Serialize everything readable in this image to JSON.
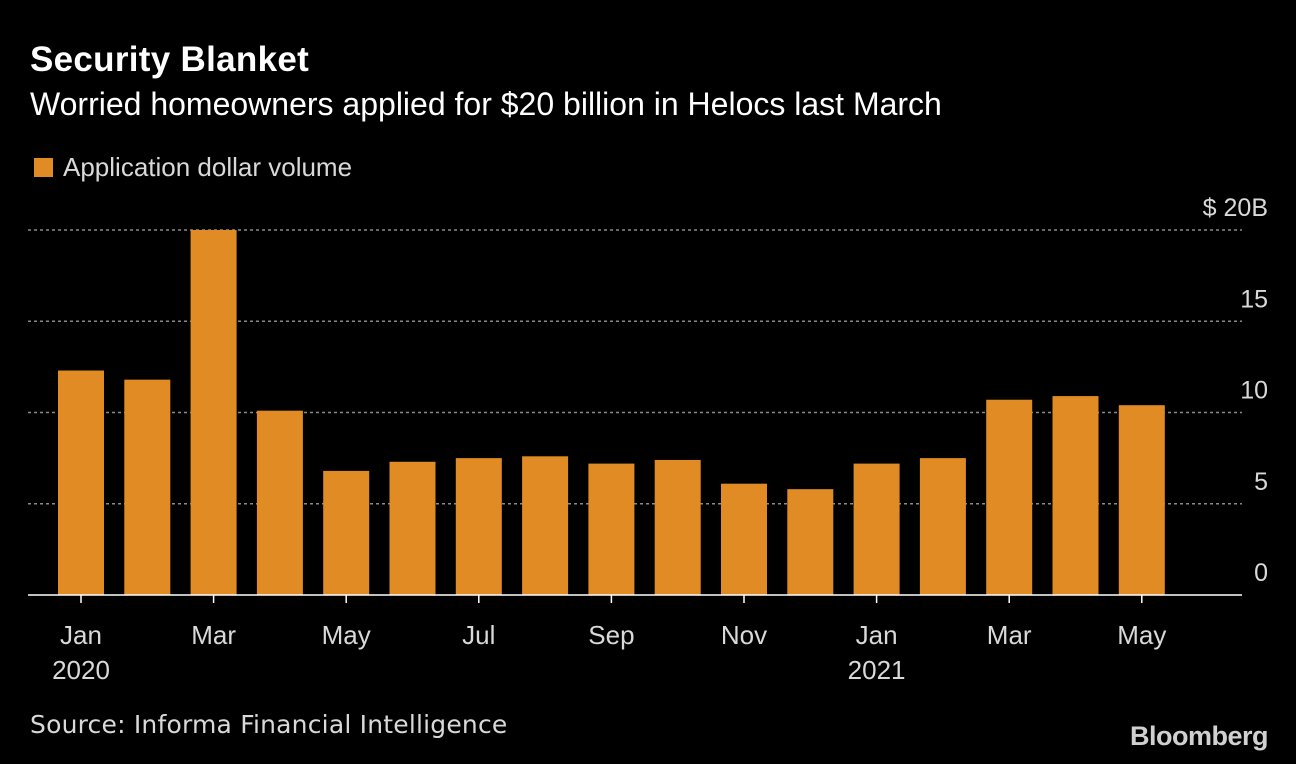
{
  "title": "Security Blanket",
  "subtitle": "Worried homeowners applied for $20 billion in Helocs last March",
  "source": "Source: Informa Financial Intelligence",
  "brand": "Bloomberg",
  "colors": {
    "bar": "#e08b23",
    "background": "#000000",
    "grid": "#8a8a8a",
    "text": "#d9d9d9"
  },
  "chart_data": {
    "type": "bar",
    "legend": [
      "Application dollar volume"
    ],
    "categories": [
      "Jan 2020",
      "Feb 2020",
      "Mar 2020",
      "Apr 2020",
      "May 2020",
      "Jun 2020",
      "Jul 2020",
      "Aug 2020",
      "Sep 2020",
      "Oct 2020",
      "Nov 2020",
      "Dec 2020",
      "Jan 2021",
      "Feb 2021",
      "Mar 2021",
      "Apr 2021",
      "May 2021"
    ],
    "values": [
      12.3,
      11.8,
      20.0,
      10.1,
      6.8,
      7.3,
      7.5,
      7.6,
      7.2,
      7.4,
      6.1,
      5.8,
      7.2,
      7.5,
      10.7,
      10.9,
      10.4
    ],
    "y_axis": {
      "min": 0,
      "max": 20,
      "ticks": [
        0,
        5,
        10,
        15,
        20
      ],
      "tick_labels": [
        "0",
        "5",
        "10",
        "15",
        "$ 20B"
      ],
      "position": "right"
    },
    "x_tick_labels": [
      {
        "index": 0,
        "label": "Jan",
        "sub": "2020"
      },
      {
        "index": 2,
        "label": "Mar",
        "sub": ""
      },
      {
        "index": 4,
        "label": "May",
        "sub": ""
      },
      {
        "index": 6,
        "label": "Jul",
        "sub": ""
      },
      {
        "index": 8,
        "label": "Sep",
        "sub": ""
      },
      {
        "index": 10,
        "label": "Nov",
        "sub": ""
      },
      {
        "index": 12,
        "label": "Jan",
        "sub": "2021"
      },
      {
        "index": 14,
        "label": "Mar",
        "sub": ""
      },
      {
        "index": 16,
        "label": "May",
        "sub": ""
      }
    ],
    "grid": true
  }
}
